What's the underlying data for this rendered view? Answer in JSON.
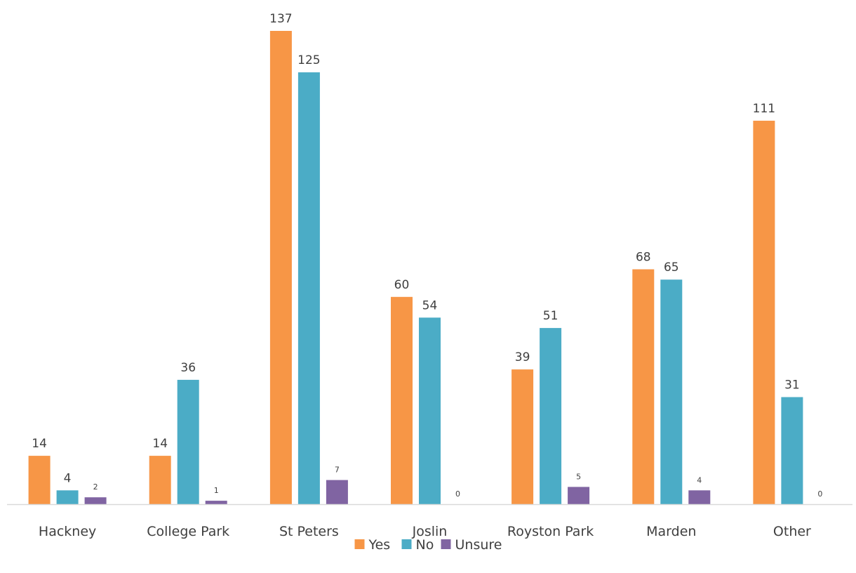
{
  "chart_data": {
    "type": "bar",
    "title": "",
    "xlabel": "",
    "ylabel": "",
    "categories": [
      "Hackney",
      "College Park",
      "St Peters",
      "Joslin",
      "Royston Park",
      "Marden",
      "Other"
    ],
    "series": [
      {
        "name": "Yes",
        "color": "#F79646",
        "values": [
          14,
          14,
          137,
          60,
          39,
          68,
          111
        ]
      },
      {
        "name": "No",
        "color": "#4BACC6",
        "values": [
          4,
          36,
          125,
          54,
          51,
          65,
          31
        ]
      },
      {
        "name": "Unsure",
        "color": "#8064A2",
        "values": [
          2,
          1,
          7,
          0,
          5,
          4,
          0
        ]
      }
    ],
    "ylim": [
      0,
      137
    ],
    "grid": false,
    "data_labels": true,
    "legend_position": "bottom"
  }
}
